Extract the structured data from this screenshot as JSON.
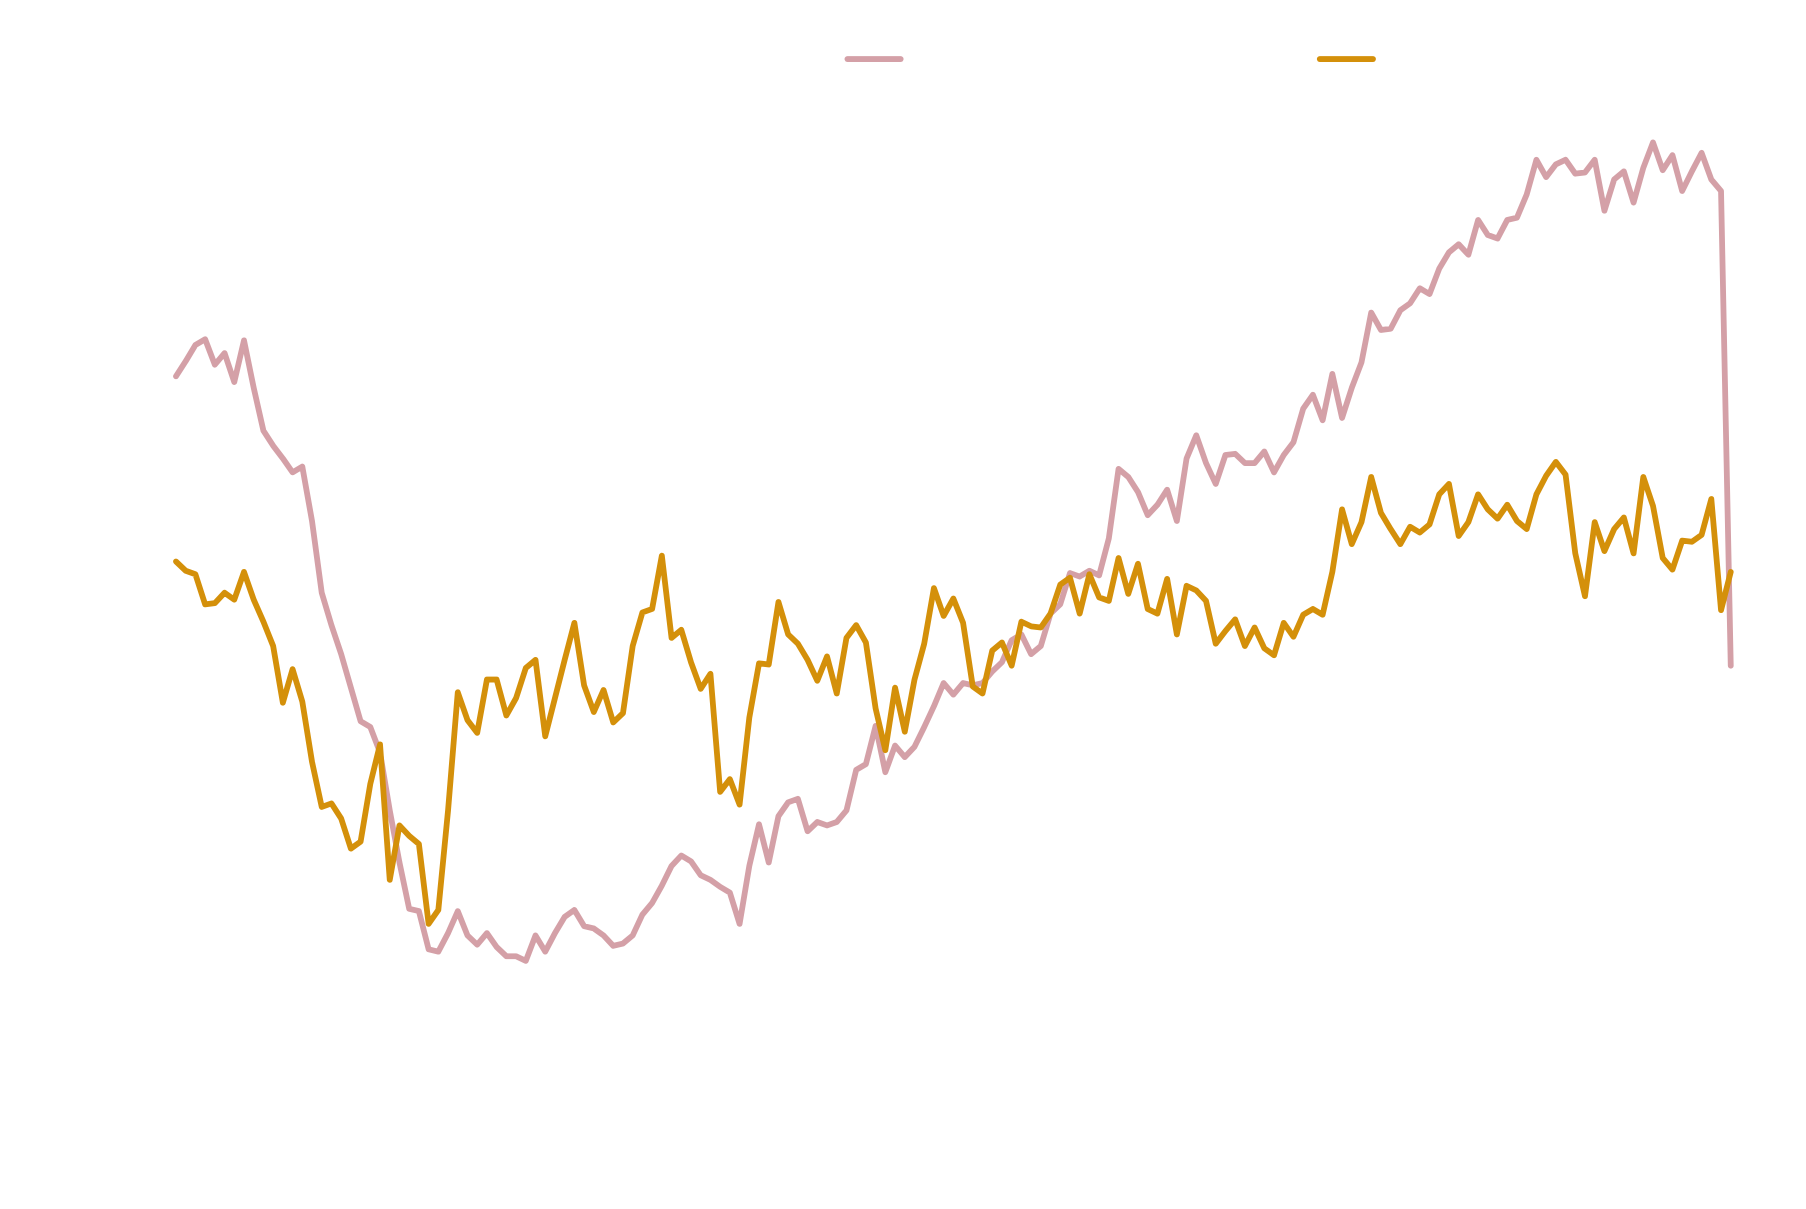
{
  "chart_data": {
    "type": "line",
    "ylim": [
      0,
      100
    ],
    "series": [
      {
        "color": "#d4a0a7",
        "values": [
          67.5,
          68.8,
          70.2,
          70.7,
          68.5,
          69.5,
          67,
          70.6,
          66.5,
          62.8,
          61.5,
          60.4,
          59.2,
          59.7,
          55,
          48.8,
          46,
          43.5,
          40.6,
          37.7,
          37.2,
          35,
          30,
          25.5,
          21.5,
          21.3,
          18,
          17.8,
          19.4,
          21.3,
          19.2,
          18.4,
          19.4,
          18.2,
          17.4,
          17.4,
          17,
          19.2,
          17.8,
          19.4,
          20.8,
          21.4,
          20,
          19.8,
          19.2,
          18.3,
          18.5,
          19.2,
          21,
          22,
          23.5,
          25.2,
          26.1,
          25.6,
          24.4,
          24,
          23.4,
          22.9,
          20.2,
          25.2,
          28.8,
          25.5,
          29.5,
          30.7,
          31,
          28.2,
          29,
          28.7,
          29,
          30,
          33.5,
          34,
          37.3,
          33.3,
          35.6,
          34.6,
          35.5,
          37.2,
          39,
          41,
          40,
          41,
          40.8,
          41,
          42,
          42.8,
          44.7,
          45.2,
          43.5,
          44.2,
          47,
          47.8,
          50.5,
          50.2,
          50.7,
          50.3,
          53.5,
          59.5,
          58.8,
          57.5,
          55.5,
          56.4,
          57.7,
          55,
          60.4,
          62.4,
          60,
          58.2,
          60.7,
          60.8,
          60,
          60,
          61,
          59.2,
          60.7,
          61.8,
          64.7,
          65.9,
          63.7,
          67.7,
          63.9,
          66.5,
          68.7,
          73,
          71.5,
          71.6,
          73.2,
          73.8,
          75.1,
          74.6,
          76.8,
          78.2,
          78.9,
          78,
          81,
          79.7,
          79.4,
          81,
          81.2,
          83.2,
          86.2,
          84.7,
          85.8,
          86.2,
          85,
          85.1,
          86.2,
          81.8,
          84.5,
          85.2,
          82.5,
          85.5,
          87.7,
          85.3,
          86.6,
          83.5,
          85.2,
          86.8,
          84.5,
          83.5,
          42.5
        ]
      },
      {
        "color": "#d4900a",
        "values": [
          51.5,
          50.7,
          50.4,
          47.8,
          47.9,
          48.8,
          48.2,
          50.6,
          48.2,
          46.3,
          44.2,
          39.3,
          42.2,
          39.4,
          34.2,
          30.3,
          30.6,
          29.3,
          26.7,
          27.3,
          32.3,
          35.7,
          24,
          28.7,
          27.8,
          27.1,
          20.2,
          21.4,
          30,
          40.2,
          37.8,
          36.7,
          41.3,
          41.3,
          38.2,
          39.7,
          42.3,
          43,
          36.4,
          39.7,
          43,
          46.2,
          40.8,
          38.5,
          40.4,
          37.6,
          38.4,
          44.2,
          47.1,
          47.4,
          52,
          44.9,
          45.6,
          42.8,
          40.5,
          41.8,
          31.6,
          32.7,
          30.5,
          38,
          42.7,
          42.6,
          48,
          45.2,
          44.4,
          43,
          41.2,
          43.3,
          40.1,
          44.9,
          46,
          44.5,
          38.8,
          35.2,
          40.6,
          36.8,
          41.3,
          44.4,
          49.2,
          46.8,
          48.3,
          46.2,
          40.7,
          40.1,
          43.8,
          44.5,
          42.5,
          46.3,
          45.9,
          45.8,
          47,
          49.5,
          50.1,
          47,
          50.4,
          48.4,
          48.1,
          51.8,
          48.7,
          51.3,
          47.4,
          47,
          50,
          45.2,
          49.4,
          49,
          48.1,
          44.4,
          45.5,
          46.5,
          44.2,
          45.8,
          44,
          43.4,
          46.2,
          45,
          46.9,
          47.4,
          46.9,
          50.6,
          56,
          53,
          54.9,
          58.8,
          55.7,
          54.3,
          53,
          54.5,
          54,
          54.7,
          57.3,
          58.2,
          53.7,
          54.9,
          57.3,
          56,
          55.2,
          56.4,
          55,
          54.3,
          57.3,
          58.9,
          60.1,
          59,
          52.2,
          48.5,
          54.9,
          52.4,
          54.3,
          55.3,
          52.2,
          58.8,
          56.3,
          51.8,
          50.8,
          53.3,
          53.2,
          53.8,
          56.9,
          47.3,
          50.6
        ]
      }
    ]
  }
}
